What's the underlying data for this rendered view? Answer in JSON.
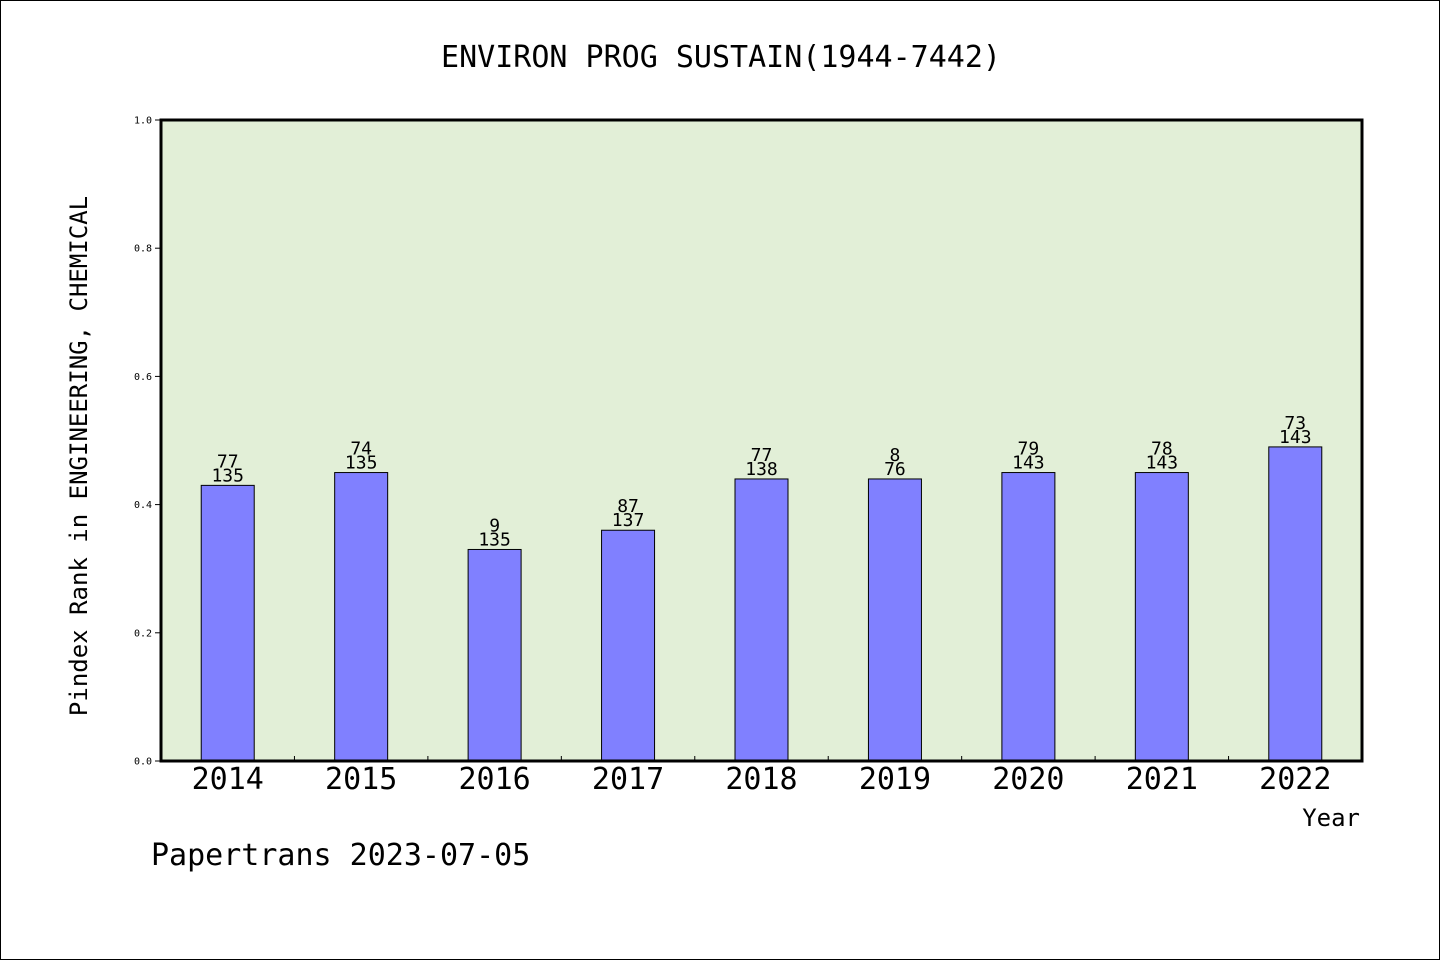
{
  "chart_data": {
    "type": "bar",
    "title": "ENVIRON PROG SUSTAIN(1944-7442)",
    "xlabel": "Year",
    "ylabel": "Pindex Rank in ENGINEERING, CHEMICAL",
    "categories": [
      "2014",
      "2015",
      "2016",
      "2017",
      "2018",
      "2019",
      "2020",
      "2021",
      "2022"
    ],
    "values": [
      0.43,
      0.45,
      0.33,
      0.36,
      0.44,
      0.44,
      0.45,
      0.45,
      0.49
    ],
    "rank_labels": [
      "77",
      "74",
      "9",
      "87",
      "77",
      "8",
      "79",
      "78",
      "73"
    ],
    "total_labels": [
      "135",
      "135",
      "135",
      "137",
      "138",
      "76",
      "143",
      "143",
      "143"
    ],
    "ylim": [
      0,
      1.0
    ],
    "yticks": [
      "0.0",
      "0.2",
      "0.4",
      "0.6",
      "0.8",
      "1.0"
    ],
    "grid": false,
    "colors": {
      "plot_background": "#e2efd7",
      "bar_fill": "#8080ff",
      "bar_stroke": "#000000"
    }
  },
  "footer": "Papertrans 2023-07-05"
}
